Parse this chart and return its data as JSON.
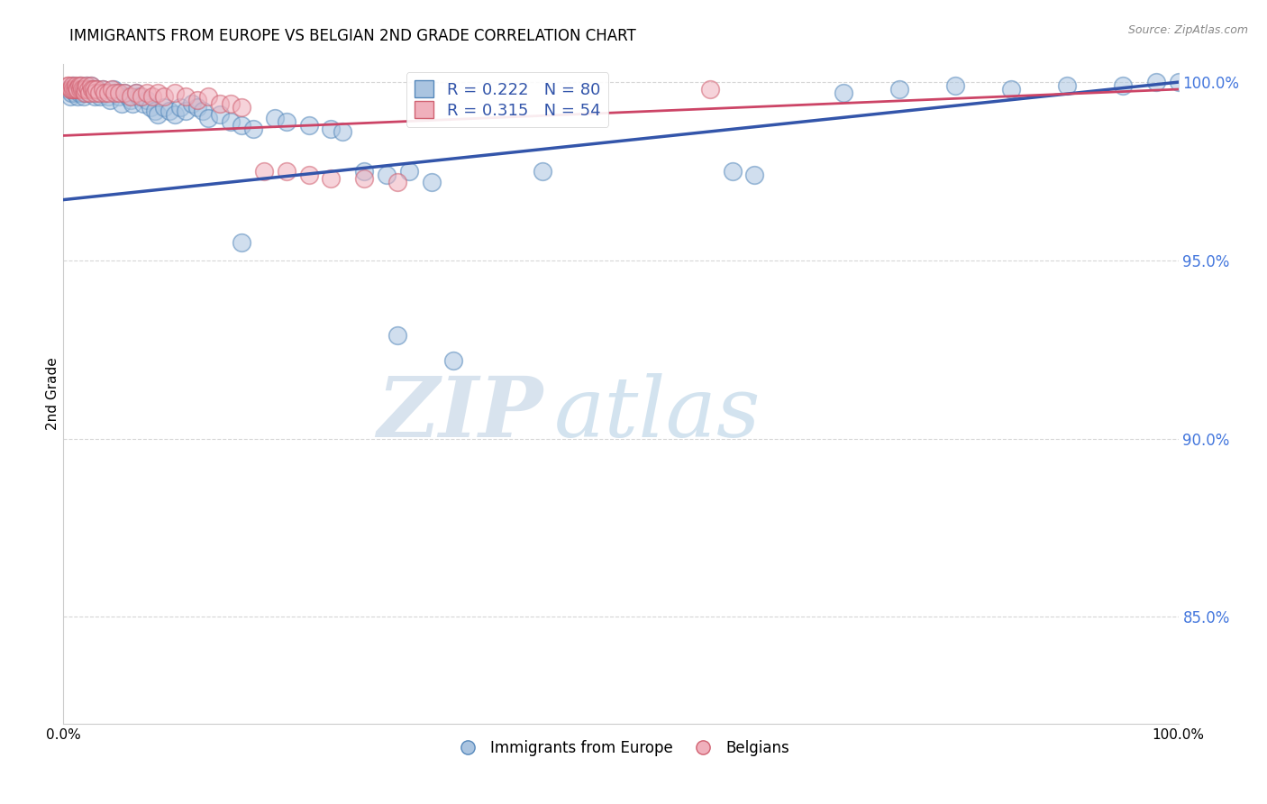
{
  "title": "IMMIGRANTS FROM EUROPE VS BELGIAN 2ND GRADE CORRELATION CHART",
  "source": "Source: ZipAtlas.com",
  "ylabel": "2nd Grade",
  "ytick_labels": [
    "85.0%",
    "90.0%",
    "95.0%",
    "100.0%"
  ],
  "ytick_values": [
    0.85,
    0.9,
    0.95,
    1.0
  ],
  "legend_blue_label": "Immigrants from Europe",
  "legend_pink_label": "Belgians",
  "legend_r_blue": "R = 0.222",
  "legend_n_blue": "N = 80",
  "legend_r_pink": "R = 0.315",
  "legend_n_pink": "N = 54",
  "blue_fill": "#aac4e0",
  "blue_edge": "#5588bb",
  "pink_fill": "#f0b0bc",
  "pink_edge": "#d06070",
  "blue_line_color": "#3355aa",
  "pink_line_color": "#cc4466",
  "watermark_zip": "ZIP",
  "watermark_atlas": "atlas",
  "xlim": [
    0.0,
    1.0
  ],
  "ylim": [
    0.82,
    1.005
  ],
  "blue_line_y_start": 0.967,
  "blue_line_y_end": 1.0,
  "pink_line_y_start": 0.985,
  "pink_line_y_end": 0.998,
  "blue_scatter_x": [
    0.005,
    0.006,
    0.007,
    0.008,
    0.009,
    0.01,
    0.012,
    0.013,
    0.014,
    0.015,
    0.016,
    0.017,
    0.018,
    0.019,
    0.02,
    0.021,
    0.022,
    0.023,
    0.025,
    0.026,
    0.027,
    0.028,
    0.03,
    0.032,
    0.033,
    0.035,
    0.037,
    0.04,
    0.042,
    0.045,
    0.048,
    0.05,
    0.052,
    0.055,
    0.058,
    0.06,
    0.062,
    0.065,
    0.068,
    0.072,
    0.075,
    0.078,
    0.082,
    0.085,
    0.09,
    0.095,
    0.1,
    0.105,
    0.11,
    0.115,
    0.12,
    0.125,
    0.13,
    0.14,
    0.15,
    0.16,
    0.17,
    0.19,
    0.2,
    0.22,
    0.24,
    0.25,
    0.27,
    0.29,
    0.31,
    0.33,
    0.16,
    0.43,
    0.6,
    0.62,
    0.7,
    0.75,
    0.8,
    0.85,
    0.9,
    0.95,
    0.98,
    1.0,
    0.3,
    0.35
  ],
  "blue_scatter_y": [
    0.998,
    0.996,
    0.997,
    0.998,
    0.999,
    0.997,
    0.998,
    0.996,
    0.997,
    0.999,
    0.998,
    0.997,
    0.996,
    0.998,
    0.997,
    0.999,
    0.998,
    0.997,
    0.999,
    0.998,
    0.997,
    0.996,
    0.998,
    0.997,
    0.996,
    0.998,
    0.997,
    0.996,
    0.995,
    0.998,
    0.997,
    0.996,
    0.994,
    0.997,
    0.996,
    0.995,
    0.994,
    0.997,
    0.996,
    0.994,
    0.995,
    0.993,
    0.992,
    0.991,
    0.993,
    0.992,
    0.991,
    0.993,
    0.992,
    0.994,
    0.993,
    0.992,
    0.99,
    0.991,
    0.989,
    0.988,
    0.987,
    0.99,
    0.989,
    0.988,
    0.987,
    0.986,
    0.975,
    0.974,
    0.975,
    0.972,
    0.955,
    0.975,
    0.975,
    0.974,
    0.997,
    0.998,
    0.999,
    0.998,
    0.999,
    0.999,
    1.0,
    1.0,
    0.929,
    0.922
  ],
  "pink_scatter_x": [
    0.004,
    0.005,
    0.006,
    0.007,
    0.008,
    0.009,
    0.01,
    0.011,
    0.012,
    0.013,
    0.014,
    0.015,
    0.016,
    0.017,
    0.018,
    0.019,
    0.02,
    0.021,
    0.022,
    0.023,
    0.025,
    0.026,
    0.027,
    0.028,
    0.03,
    0.032,
    0.035,
    0.037,
    0.04,
    0.043,
    0.046,
    0.05,
    0.055,
    0.06,
    0.065,
    0.07,
    0.075,
    0.08,
    0.085,
    0.09,
    0.1,
    0.11,
    0.12,
    0.13,
    0.14,
    0.15,
    0.16,
    0.18,
    0.2,
    0.22,
    0.24,
    0.27,
    0.3,
    0.58
  ],
  "pink_scatter_y": [
    0.999,
    0.999,
    0.998,
    0.998,
    0.999,
    0.998,
    0.998,
    0.999,
    0.998,
    0.998,
    0.999,
    0.998,
    0.999,
    0.998,
    0.998,
    0.997,
    0.998,
    0.999,
    0.998,
    0.997,
    0.999,
    0.998,
    0.998,
    0.997,
    0.998,
    0.997,
    0.998,
    0.997,
    0.997,
    0.998,
    0.997,
    0.997,
    0.997,
    0.996,
    0.997,
    0.996,
    0.997,
    0.996,
    0.997,
    0.996,
    0.997,
    0.996,
    0.995,
    0.996,
    0.994,
    0.994,
    0.993,
    0.975,
    0.975,
    0.974,
    0.973,
    0.973,
    0.972,
    0.998
  ]
}
